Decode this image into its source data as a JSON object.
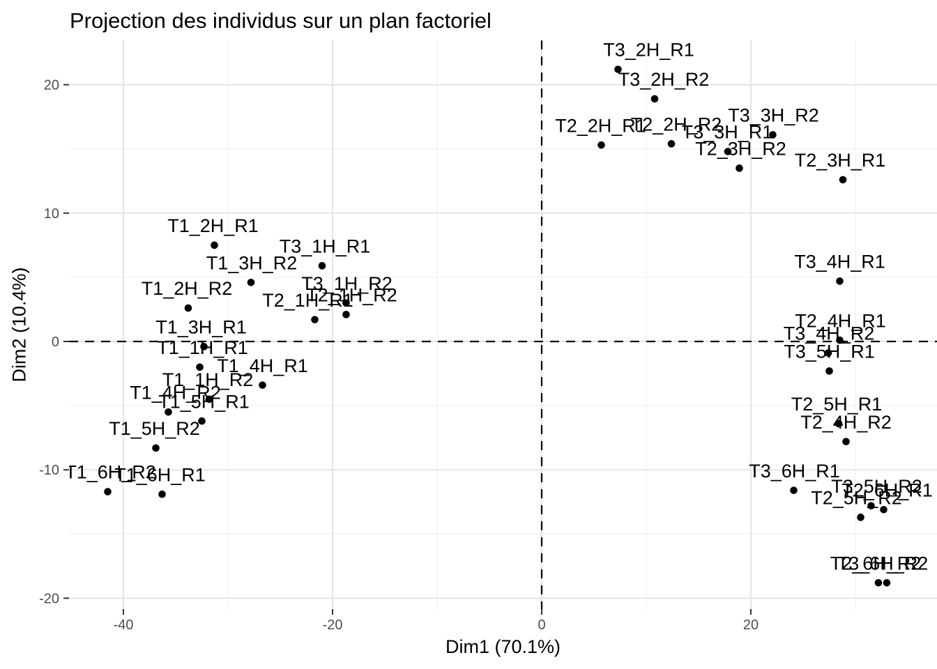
{
  "chart_data": {
    "type": "scatter",
    "title": "Projection des individus sur un plan factoriel",
    "xlabel": "Dim1 (70.1%)",
    "ylabel": "Dim2 (10.4%)",
    "xlim": [
      -45.2,
      37.8
    ],
    "ylim": [
      -20.9,
      23.5
    ],
    "x_ticks": [
      -40,
      -20,
      0,
      20
    ],
    "y_ticks": [
      -20,
      -10,
      0,
      10,
      20
    ],
    "x_minor_gridlines": [
      -30,
      -10,
      10,
      30
    ],
    "y_minor_gridlines": [
      -15,
      -5,
      5,
      15
    ],
    "grid": "on",
    "legend": "none",
    "reference_lines": [
      {
        "orientation": "horizontal",
        "value": 0,
        "style": "dashed"
      },
      {
        "orientation": "vertical",
        "value": 0,
        "style": "dashed"
      }
    ],
    "colors": {
      "point": "#000000",
      "label_text": "#000000",
      "tick_text": "#4d4d4d",
      "grid_major": "#e5e5e5",
      "grid_minor": "#f2f2f2",
      "reference_line": "#000000",
      "background": "#ffffff"
    },
    "points": [
      {
        "label": "T3_2H_R1",
        "x": 7.3,
        "y": 21.2,
        "label_dx": 44
      },
      {
        "label": "T3_2H_R2",
        "x": 10.8,
        "y": 18.9,
        "label_dx": 13
      },
      {
        "label": "T2_2H_R1",
        "x": 5.7,
        "y": 15.3,
        "label_dx": -1
      },
      {
        "label": "T2_2H_R2",
        "x": 12.4,
        "y": 15.4,
        "label_dx": 7
      },
      {
        "label": "T3_3H_R2",
        "x": 22.1,
        "y": 16.1,
        "label_dx": 1
      },
      {
        "label": "T3_3H_R1",
        "x": 17.8,
        "y": 14.8,
        "label_dx": -1
      },
      {
        "label": "T2_3H_R2",
        "x": 18.9,
        "y": 13.5,
        "label_dx": 2
      },
      {
        "label": "T2_3H_R1",
        "x": 28.8,
        "y": 12.6,
        "label_dx": -4
      },
      {
        "label": "T1_2H_R1",
        "x": -31.3,
        "y": 7.5,
        "label_dx": -2
      },
      {
        "label": "T3_1H_R1",
        "x": -21.0,
        "y": 5.9,
        "label_dx": 4
      },
      {
        "label": "T1_3H_R2",
        "x": -27.8,
        "y": 4.6,
        "label_dx": 1
      },
      {
        "label": "T1_2H_R2",
        "x": -33.8,
        "y": 2.6,
        "label_dx": -2
      },
      {
        "label": "T3_1H_R2",
        "x": -18.7,
        "y": 3.0,
        "label_dx": 1
      },
      {
        "label": "T2_1H_R1",
        "x": -21.7,
        "y": 1.7,
        "label_dx": -10
      },
      {
        "label": "T2_1H_R2",
        "x": -18.7,
        "y": 2.1,
        "label_dx": 8
      },
      {
        "label": "T1_3H_R1",
        "x": -32.3,
        "y": -0.4,
        "label_dx": -4
      },
      {
        "label": "T1_1H_R1",
        "x": -32.7,
        "y": -2.0,
        "label_dx": 4
      },
      {
        "label": "T1_4H_R1",
        "x": -26.7,
        "y": -3.4,
        "label_dx": 0
      },
      {
        "label": "T1_1H_R2",
        "x": -31.8,
        "y": -4.5,
        "label_dx": -2
      },
      {
        "label": "T1_4H_R2",
        "x": -35.7,
        "y": -5.5,
        "label_dx": 10
      },
      {
        "label": "T1_5H_R1",
        "x": -32.5,
        "y": -6.2,
        "label_dx": 3
      },
      {
        "label": "T1_5H_R2",
        "x": -36.9,
        "y": -8.3,
        "label_dx": -2
      },
      {
        "label": "T1_6H_R2",
        "x": -41.5,
        "y": -11.7,
        "label_dx": 4
      },
      {
        "label": "T1_6H_R1",
        "x": -36.3,
        "y": -11.9,
        "label_dx": -3
      },
      {
        "label": "T3_4H_R1",
        "x": 28.5,
        "y": 4.7,
        "label_dx": 0
      },
      {
        "label": "T2_4H_R1",
        "x": 28.5,
        "y": 0.1,
        "label_dx": 1
      },
      {
        "label": "T3_4H_R2",
        "x": 27.4,
        "y": -0.9,
        "label_dx": 1
      },
      {
        "label": "T3_5H_R1",
        "x": 27.5,
        "y": -2.3,
        "label_dx": 0
      },
      {
        "label": "T2_5H_R1",
        "x": 28.4,
        "y": -6.4,
        "label_dx": -3
      },
      {
        "label": "T2_4H_R2",
        "x": 29.1,
        "y": -7.8,
        "label_dx": 0
      },
      {
        "label": "T3_6H_R1",
        "x": 24.1,
        "y": -11.6,
        "label_dx": 1
      },
      {
        "label": "T3_5H_R2",
        "x": 31.5,
        "y": -12.8,
        "label_dx": 8
      },
      {
        "label": "T2_6H_R1",
        "x": 32.7,
        "y": -13.1,
        "label_dx": 5
      },
      {
        "label": "T2_5H_R2",
        "x": 30.5,
        "y": -13.7,
        "label_dx": -6
      },
      {
        "label": "T2_6H_R2",
        "x": 32.2,
        "y": -18.8,
        "label_dx": -4
      },
      {
        "label": "T3_6H_R2",
        "x": 33.0,
        "y": -18.8,
        "label_dx": -6
      }
    ]
  }
}
